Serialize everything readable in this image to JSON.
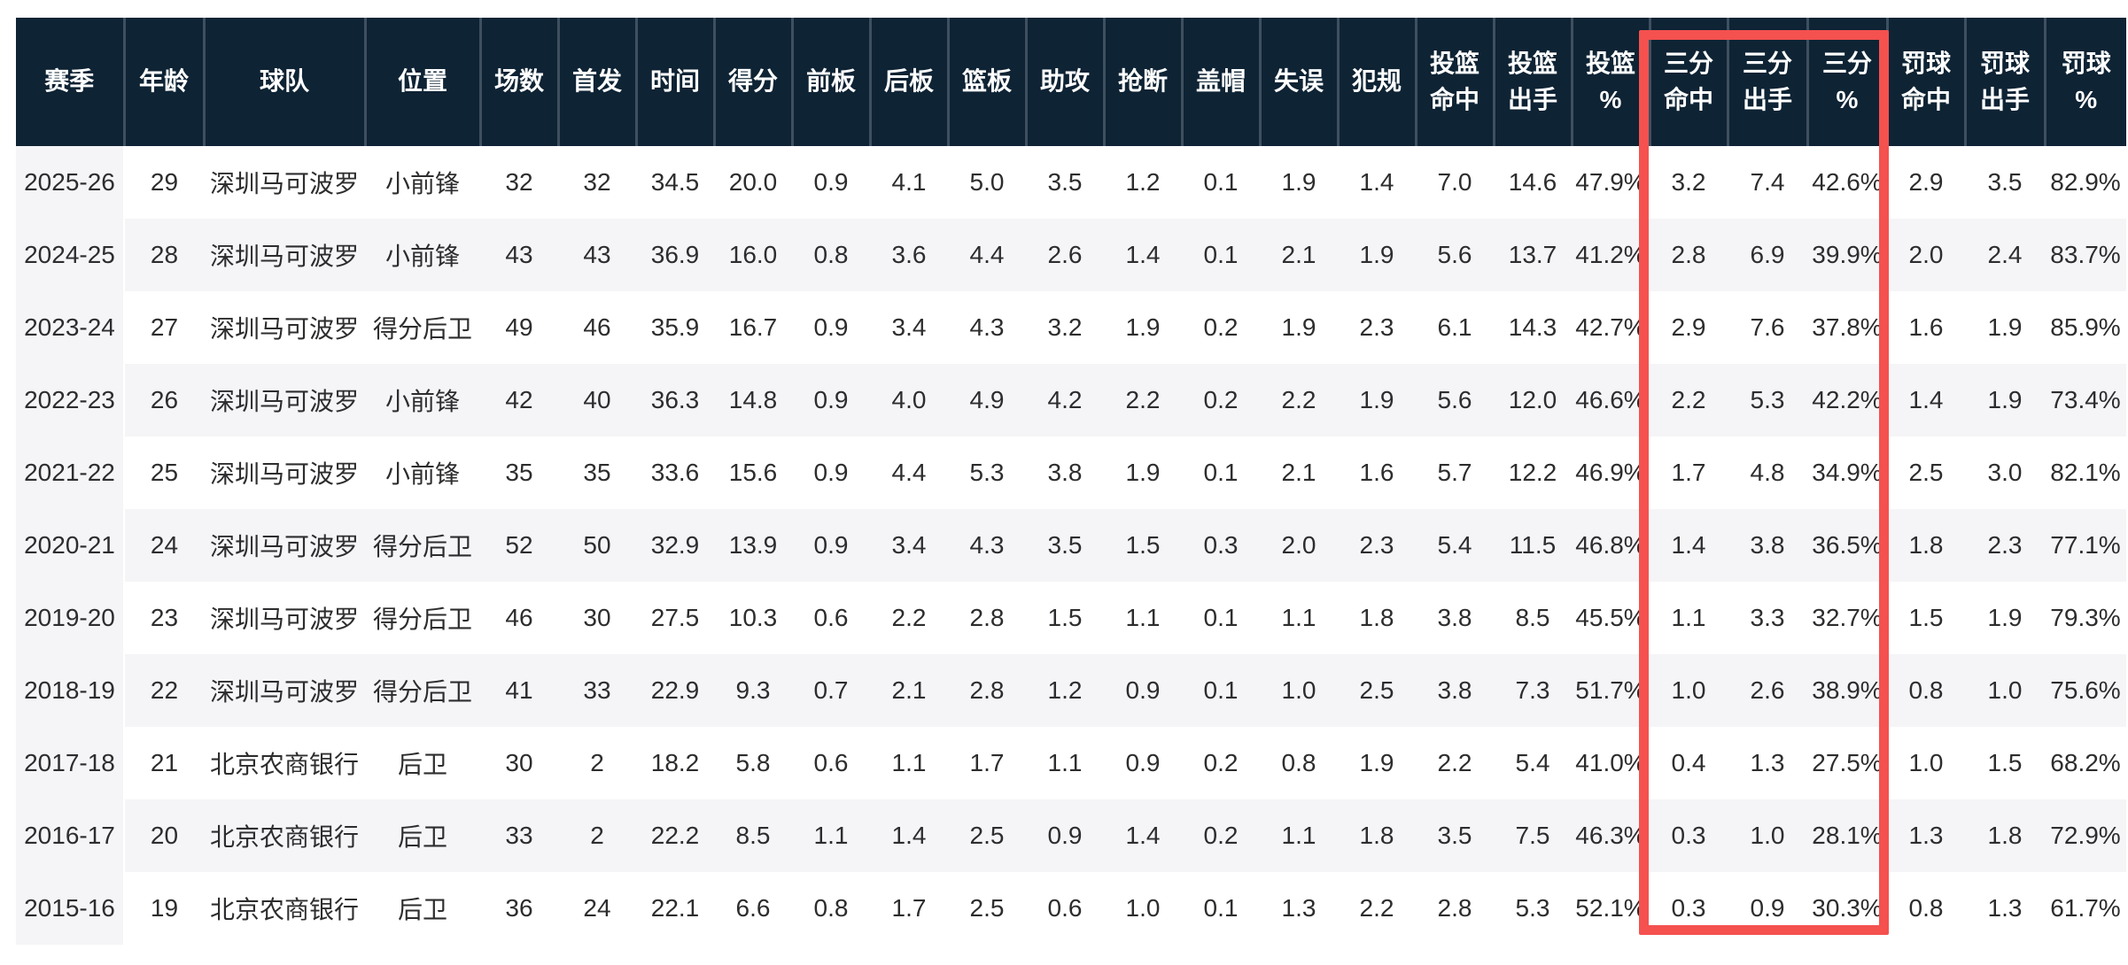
{
  "colors": {
    "header_bg": "#0e2334",
    "header_sep": "#3e5060",
    "stripe": "#f5f5f7",
    "text": "#2d2d2f",
    "highlight_red": "#f4514f"
  },
  "highlight": {
    "note": "red rectangle around three-point columns",
    "columns_highlighted": [
      "三分\n命中",
      "三分\n出手",
      "三分\n%"
    ]
  },
  "table": {
    "columns": [
      {
        "label": "赛季"
      },
      {
        "label": "年龄"
      },
      {
        "label": "球队"
      },
      {
        "label": "位置"
      },
      {
        "label": "场数"
      },
      {
        "label": "首发"
      },
      {
        "label": "时间"
      },
      {
        "label": "得分"
      },
      {
        "label": "前板"
      },
      {
        "label": "后板"
      },
      {
        "label": "篮板"
      },
      {
        "label": "助攻"
      },
      {
        "label": "抢断"
      },
      {
        "label": "盖帽"
      },
      {
        "label": "失误"
      },
      {
        "label": "犯规"
      },
      {
        "label": "投篮\n命中"
      },
      {
        "label": "投篮\n出手"
      },
      {
        "label": "投篮\n%"
      },
      {
        "label": "三分\n命中"
      },
      {
        "label": "三分\n出手"
      },
      {
        "label": "三分\n%"
      },
      {
        "label": "罚球\n命中"
      },
      {
        "label": "罚球\n出手"
      },
      {
        "label": "罚球\n%"
      }
    ],
    "rows": [
      [
        "2025-26",
        "29",
        "深圳马可波罗",
        "小前锋",
        "32",
        "32",
        "34.5",
        "20.0",
        "0.9",
        "4.1",
        "5.0",
        "3.5",
        "1.2",
        "0.1",
        "1.9",
        "1.4",
        "7.0",
        "14.6",
        "47.9%",
        "3.2",
        "7.4",
        "42.6%",
        "2.9",
        "3.5",
        "82.9%"
      ],
      [
        "2024-25",
        "28",
        "深圳马可波罗",
        "小前锋",
        "43",
        "43",
        "36.9",
        "16.0",
        "0.8",
        "3.6",
        "4.4",
        "2.6",
        "1.4",
        "0.1",
        "2.1",
        "1.9",
        "5.6",
        "13.7",
        "41.2%",
        "2.8",
        "6.9",
        "39.9%",
        "2.0",
        "2.4",
        "83.7%"
      ],
      [
        "2023-24",
        "27",
        "深圳马可波罗",
        "得分后卫",
        "49",
        "46",
        "35.9",
        "16.7",
        "0.9",
        "3.4",
        "4.3",
        "3.2",
        "1.9",
        "0.2",
        "1.9",
        "2.3",
        "6.1",
        "14.3",
        "42.7%",
        "2.9",
        "7.6",
        "37.8%",
        "1.6",
        "1.9",
        "85.9%"
      ],
      [
        "2022-23",
        "26",
        "深圳马可波罗",
        "小前锋",
        "42",
        "40",
        "36.3",
        "14.8",
        "0.9",
        "4.0",
        "4.9",
        "4.2",
        "2.2",
        "0.2",
        "2.2",
        "1.9",
        "5.6",
        "12.0",
        "46.6%",
        "2.2",
        "5.3",
        "42.2%",
        "1.4",
        "1.9",
        "73.4%"
      ],
      [
        "2021-22",
        "25",
        "深圳马可波罗",
        "小前锋",
        "35",
        "35",
        "33.6",
        "15.6",
        "0.9",
        "4.4",
        "5.3",
        "3.8",
        "1.9",
        "0.1",
        "2.1",
        "1.6",
        "5.7",
        "12.2",
        "46.9%",
        "1.7",
        "4.8",
        "34.9%",
        "2.5",
        "3.0",
        "82.1%"
      ],
      [
        "2020-21",
        "24",
        "深圳马可波罗",
        "得分后卫",
        "52",
        "50",
        "32.9",
        "13.9",
        "0.9",
        "3.4",
        "4.3",
        "3.5",
        "1.5",
        "0.3",
        "2.0",
        "2.3",
        "5.4",
        "11.5",
        "46.8%",
        "1.4",
        "3.8",
        "36.5%",
        "1.8",
        "2.3",
        "77.1%"
      ],
      [
        "2019-20",
        "23",
        "深圳马可波罗",
        "得分后卫",
        "46",
        "30",
        "27.5",
        "10.3",
        "0.6",
        "2.2",
        "2.8",
        "1.5",
        "1.1",
        "0.1",
        "1.1",
        "1.8",
        "3.8",
        "8.5",
        "45.5%",
        "1.1",
        "3.3",
        "32.7%",
        "1.5",
        "1.9",
        "79.3%"
      ],
      [
        "2018-19",
        "22",
        "深圳马可波罗",
        "得分后卫",
        "41",
        "33",
        "22.9",
        "9.3",
        "0.7",
        "2.1",
        "2.8",
        "1.2",
        "0.9",
        "0.1",
        "1.0",
        "2.5",
        "3.8",
        "7.3",
        "51.7%",
        "1.0",
        "2.6",
        "38.9%",
        "0.8",
        "1.0",
        "75.6%"
      ],
      [
        "2017-18",
        "21",
        "北京农商银行",
        "后卫",
        "30",
        "2",
        "18.2",
        "5.8",
        "0.6",
        "1.1",
        "1.7",
        "1.1",
        "0.9",
        "0.2",
        "0.8",
        "1.9",
        "2.2",
        "5.4",
        "41.0%",
        "0.4",
        "1.3",
        "27.5%",
        "1.0",
        "1.5",
        "68.2%"
      ],
      [
        "2016-17",
        "20",
        "北京农商银行",
        "后卫",
        "33",
        "2",
        "22.2",
        "8.5",
        "1.1",
        "1.4",
        "2.5",
        "0.9",
        "1.4",
        "0.2",
        "1.1",
        "1.8",
        "3.5",
        "7.5",
        "46.3%",
        "0.3",
        "1.0",
        "28.1%",
        "1.3",
        "1.8",
        "72.9%"
      ],
      [
        "2015-16",
        "19",
        "北京农商银行",
        "后卫",
        "36",
        "24",
        "22.1",
        "6.6",
        "0.8",
        "1.7",
        "2.5",
        "0.6",
        "1.0",
        "0.1",
        "1.3",
        "2.2",
        "2.8",
        "5.3",
        "52.1%",
        "0.3",
        "0.9",
        "30.3%",
        "0.8",
        "1.3",
        "61.7%"
      ]
    ]
  }
}
